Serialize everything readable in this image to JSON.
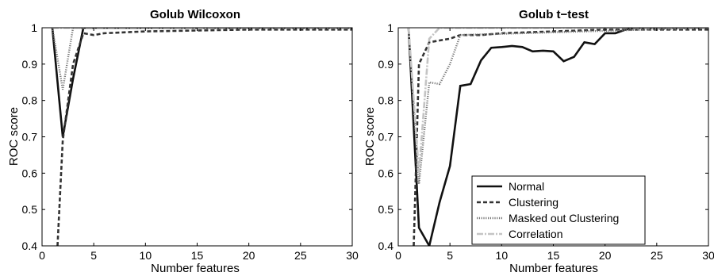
{
  "chart_data": [
    {
      "type": "line",
      "title": "Golub Wilcoxon",
      "xlabel": "Number features",
      "ylabel": "ROC score",
      "xlim": [
        0,
        30
      ],
      "ylim": [
        0.4,
        1
      ],
      "xticks": [
        0,
        5,
        10,
        15,
        20,
        25,
        30
      ],
      "yticks": [
        0.4,
        0.5,
        0.6,
        0.7,
        0.8,
        0.9,
        1
      ],
      "legend": null,
      "series": [
        {
          "key": "normal",
          "x": [
            1,
            2,
            3,
            4,
            5,
            10,
            20,
            30
          ],
          "y": [
            1.0,
            0.7,
            0.86,
            1.0,
            1.0,
            1.0,
            1.0,
            1.0
          ]
        },
        {
          "key": "clustering",
          "x": [
            1.5,
            2,
            3,
            4,
            5,
            6,
            10,
            20,
            30
          ],
          "y": [
            0.4,
            0.69,
            0.9,
            0.985,
            0.98,
            0.985,
            0.99,
            0.995,
            0.995
          ]
        },
        {
          "key": "masked",
          "x": [
            1,
            2,
            3,
            30
          ],
          "y": [
            1.0,
            0.83,
            1.0,
            1.0
          ]
        },
        {
          "key": "correlation",
          "x": [
            1,
            30
          ],
          "y": [
            1.0,
            1.0
          ]
        }
      ]
    },
    {
      "type": "line",
      "title": "Golub t−test",
      "xlabel": "Number features",
      "ylabel": "ROC score",
      "xlim": [
        0,
        30
      ],
      "ylim": [
        0.4,
        1
      ],
      "xticks": [
        0,
        5,
        10,
        15,
        20,
        25,
        30
      ],
      "yticks": [
        0.4,
        0.5,
        0.6,
        0.7,
        0.8,
        0.9,
        1
      ],
      "legend": {
        "position": "lower-center",
        "entries": [
          {
            "key": "normal",
            "label": "Normal"
          },
          {
            "key": "clustering",
            "label": "Clustering"
          },
          {
            "key": "masked",
            "label": "Masked out Clustering"
          },
          {
            "key": "correlation",
            "label": "Correlation"
          }
        ]
      },
      "series": [
        {
          "key": "normal",
          "name": "Normal",
          "x": [
            1,
            2,
            3,
            4,
            5,
            6,
            7,
            8,
            9,
            10,
            11,
            12,
            13,
            14,
            15,
            16,
            17,
            18,
            19,
            20,
            21,
            22,
            23,
            25,
            30
          ],
          "y": [
            1.0,
            0.45,
            0.4,
            0.52,
            0.62,
            0.84,
            0.845,
            0.91,
            0.945,
            0.947,
            0.95,
            0.947,
            0.935,
            0.937,
            0.935,
            0.908,
            0.92,
            0.96,
            0.955,
            0.985,
            0.985,
            0.995,
            1.0,
            1.0,
            1.0
          ]
        },
        {
          "key": "clustering",
          "name": "Clustering",
          "x": [
            1.5,
            2,
            3,
            4,
            5,
            6,
            8,
            10,
            15,
            20,
            30
          ],
          "y": [
            0.4,
            0.9,
            0.96,
            0.965,
            0.97,
            0.98,
            0.98,
            0.985,
            0.99,
            0.995,
            0.995
          ]
        },
        {
          "key": "masked",
          "name": "Masked out Clustering",
          "x": [
            1,
            2,
            3,
            4,
            5,
            6,
            30
          ],
          "y": [
            1.0,
            0.57,
            0.85,
            0.845,
            0.9,
            0.98,
            1.0
          ]
        },
        {
          "key": "correlation",
          "name": "Correlation",
          "x": [
            1,
            2,
            3,
            4,
            30
          ],
          "y": [
            1.0,
            0.6,
            0.97,
            1.0,
            1.0
          ]
        }
      ]
    }
  ],
  "styles": {
    "normal": {
      "color": "#111111",
      "dash": "",
      "width": 2.6
    },
    "clustering": {
      "color": "#333333",
      "dash": "5,3",
      "width": 2.6
    },
    "masked": {
      "color": "#777777",
      "dash": "1.2,1.6",
      "width": 2.4
    },
    "correlation": {
      "color": "#c4c4c4",
      "dash": "8,2,2,2",
      "width": 2.6
    }
  }
}
